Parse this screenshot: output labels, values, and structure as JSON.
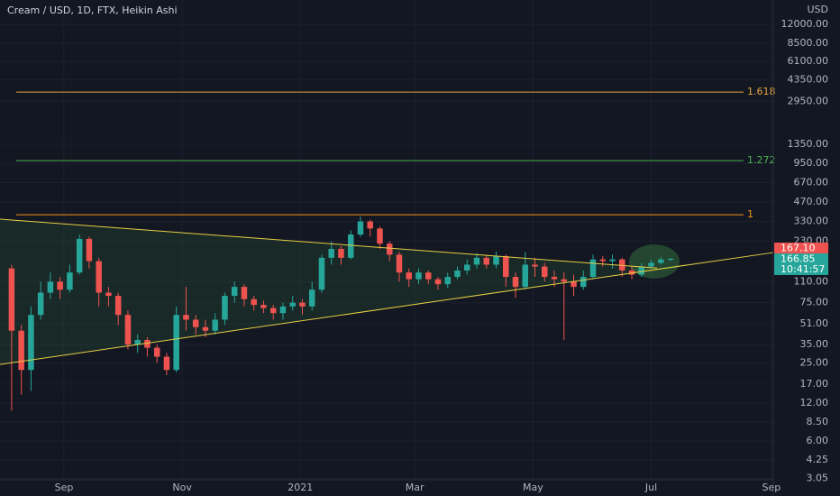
{
  "chart_data": {
    "type": "candlestick",
    "title": "Cream / USD, 1D, FTX, Heikin Ashi",
    "currency": "USD",
    "log_scale": true,
    "grid": true,
    "up_color": "#26a69a",
    "down_color": "#ef5350",
    "xlim": [
      "2020-07-30",
      "2021-09-02"
    ],
    "xticks": [
      {
        "value": "2020-09-01",
        "label": "Sep"
      },
      {
        "value": "2020-11-01",
        "label": "Nov"
      },
      {
        "value": "2021-01-01",
        "label": "2021"
      },
      {
        "value": "2021-03-01",
        "label": "Mar"
      },
      {
        "value": "2021-05-01",
        "label": "May"
      },
      {
        "value": "2021-07-01",
        "label": "Jul"
      },
      {
        "value": "2021-09-01",
        "label": "Sep"
      }
    ],
    "ylim": [
      2.97,
      18700
    ],
    "yticks": [
      {
        "value": 12000,
        "label": "12000.00"
      },
      {
        "value": 8500,
        "label": "8500.00"
      },
      {
        "value": 6100,
        "label": "6100.00"
      },
      {
        "value": 4350,
        "label": "4350.00"
      },
      {
        "value": 2950,
        "label": "2950.00"
      },
      {
        "value": 1350,
        "label": "1350.00"
      },
      {
        "value": 950,
        "label": "950.00"
      },
      {
        "value": 670,
        "label": "670.00"
      },
      {
        "value": 470,
        "label": "470.00"
      },
      {
        "value": 330,
        "label": "330.00"
      },
      {
        "value": 230,
        "label": "230.00"
      },
      {
        "value": 110,
        "label": "110.00"
      },
      {
        "value": 75,
        "label": "75.00"
      },
      {
        "value": 51,
        "label": "51.00"
      },
      {
        "value": 35,
        "label": "35.00"
      },
      {
        "value": 25,
        "label": "25.00"
      },
      {
        "value": 17,
        "label": "17.00"
      },
      {
        "value": 12,
        "label": "12.00"
      },
      {
        "value": 8.5,
        "label": "8.50"
      },
      {
        "value": 6,
        "label": "6.00"
      },
      {
        "value": 4.25,
        "label": "4.25"
      },
      {
        "value": 3.05,
        "label": "3.05"
      }
    ],
    "x": [
      "2020-08-05",
      "2020-08-10",
      "2020-08-15",
      "2020-08-20",
      "2020-08-25",
      "2020-08-30",
      "2020-09-04",
      "2020-09-09",
      "2020-09-14",
      "2020-09-19",
      "2020-09-24",
      "2020-09-29",
      "2020-10-04",
      "2020-10-09",
      "2020-10-14",
      "2020-10-19",
      "2020-10-24",
      "2020-10-29",
      "2020-11-03",
      "2020-11-08",
      "2020-11-13",
      "2020-11-18",
      "2020-11-23",
      "2020-11-28",
      "2020-12-03",
      "2020-12-08",
      "2020-12-13",
      "2020-12-18",
      "2020-12-23",
      "2020-12-28",
      "2021-01-02",
      "2021-01-07",
      "2021-01-12",
      "2021-01-17",
      "2021-01-22",
      "2021-01-27",
      "2021-02-01",
      "2021-02-06",
      "2021-02-11",
      "2021-02-16",
      "2021-02-21",
      "2021-02-26",
      "2021-03-03",
      "2021-03-08",
      "2021-03-13",
      "2021-03-18",
      "2021-03-23",
      "2021-03-28",
      "2021-04-02",
      "2021-04-07",
      "2021-04-12",
      "2021-04-17",
      "2021-04-22",
      "2021-04-27",
      "2021-05-02",
      "2021-05-07",
      "2021-05-12",
      "2021-05-17",
      "2021-05-22",
      "2021-05-27",
      "2021-06-01",
      "2021-06-06",
      "2021-06-11",
      "2021-06-16",
      "2021-06-21",
      "2021-06-26",
      "2021-07-01",
      "2021-07-06",
      "2021-07-11"
    ],
    "open": [
      140,
      45,
      22,
      60,
      90,
      110,
      95,
      130,
      240,
      160,
      90,
      85,
      60,
      35,
      38,
      33,
      28,
      22,
      60,
      55,
      48,
      45,
      55,
      85,
      100,
      80,
      72,
      68,
      62,
      70,
      75,
      70,
      95,
      170,
      200,
      170,
      260,
      330,
      290,
      220,
      180,
      130,
      115,
      130,
      115,
      105,
      120,
      135,
      150,
      170,
      150,
      175,
      120,
      100,
      150,
      145,
      120,
      115,
      110,
      100,
      120,
      165,
      160,
      165,
      135,
      125,
      145,
      155,
      165
    ],
    "high": [
      150,
      50,
      70,
      110,
      130,
      120,
      150,
      260,
      250,
      170,
      100,
      90,
      65,
      42,
      40,
      35,
      30,
      70,
      100,
      60,
      55,
      62,
      90,
      110,
      105,
      85,
      78,
      72,
      75,
      85,
      80,
      110,
      180,
      230,
      210,
      280,
      360,
      340,
      300,
      230,
      190,
      140,
      140,
      135,
      120,
      130,
      145,
      165,
      185,
      180,
      190,
      180,
      130,
      190,
      170,
      155,
      135,
      130,
      125,
      135,
      180,
      175,
      180,
      170,
      145,
      155,
      165,
      172,
      170
    ],
    "low": [
      10.5,
      14,
      15,
      55,
      80,
      80,
      90,
      125,
      140,
      70,
      70,
      50,
      32,
      30,
      28,
      25,
      20,
      21,
      45,
      42,
      40,
      42,
      50,
      75,
      70,
      65,
      62,
      55,
      55,
      65,
      60,
      65,
      90,
      150,
      150,
      165,
      250,
      250,
      200,
      160,
      110,
      100,
      105,
      105,
      95,
      98,
      115,
      125,
      140,
      140,
      140,
      100,
      82,
      95,
      120,
      110,
      100,
      38,
      85,
      95,
      115,
      145,
      140,
      120,
      115,
      120,
      140,
      150,
      160
    ],
    "close": [
      45,
      22,
      60,
      90,
      110,
      95,
      130,
      240,
      160,
      90,
      85,
      60,
      35,
      38,
      33,
      28,
      22,
      60,
      55,
      48,
      45,
      55,
      85,
      100,
      80,
      72,
      68,
      62,
      70,
      75,
      70,
      95,
      170,
      200,
      170,
      260,
      330,
      290,
      220,
      180,
      130,
      115,
      130,
      115,
      105,
      120,
      135,
      150,
      170,
      150,
      175,
      120,
      100,
      150,
      145,
      120,
      115,
      110,
      100,
      120,
      165,
      160,
      165,
      135,
      125,
      145,
      155,
      165,
      166.85
    ],
    "levels": [
      {
        "value": 3490,
        "label": "1.618",
        "color": "#e8a33d"
      },
      {
        "value": 1000,
        "label": "1.272",
        "color": "#4caf50"
      },
      {
        "value": 373,
        "label": "1",
        "color": "#f7931a"
      }
    ],
    "trendlines": [
      {
        "x": [
          "2020-07-30",
          "2021-07-04"
        ],
        "y": [
          344,
          141
        ],
        "color": "#e6cf43"
      },
      {
        "x": [
          "2020-07-30",
          "2021-09-02"
        ],
        "y": [
          24.3,
          187
        ],
        "color": "#e6cf43"
      }
    ],
    "price_labels": [
      {
        "value": 166.85,
        "label": "166.85",
        "countdown": "10:41:57",
        "color": "#26a69a"
      },
      {
        "value": 167.1,
        "label": "167.10",
        "color": "#ef5350"
      }
    ]
  }
}
